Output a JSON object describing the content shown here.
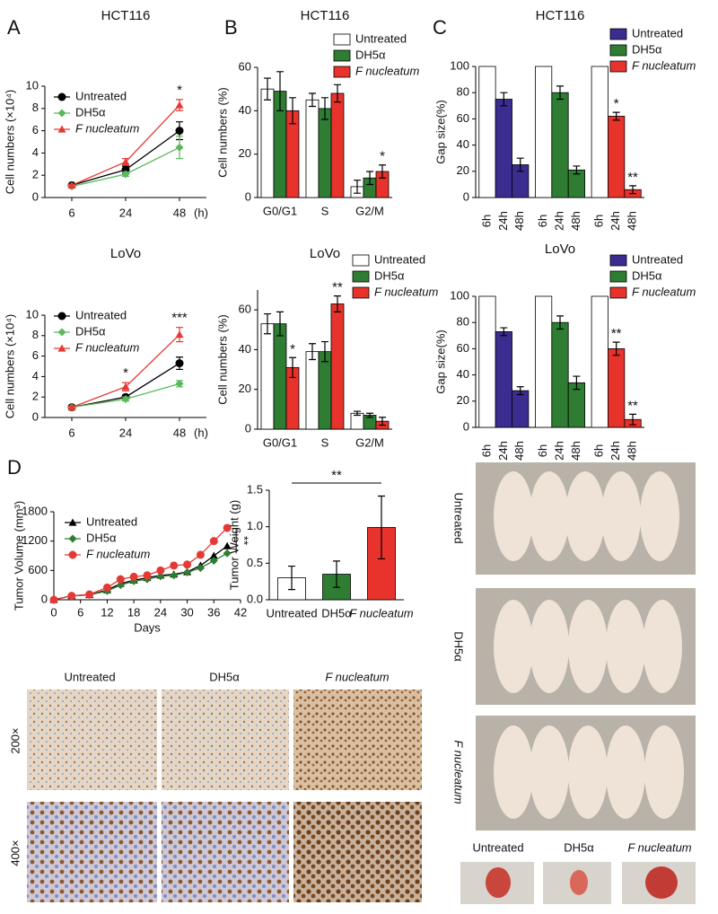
{
  "panel_labels": [
    "A",
    "B",
    "C",
    "D"
  ],
  "chart_data": [
    {
      "type": "line",
      "title": "HCT116",
      "ylabel": "Cell numbers (×10⁴)",
      "xlabel": "(h)",
      "categories": [
        "6",
        "24",
        "48"
      ],
      "ylim": [
        0,
        10
      ],
      "yticks": [
        0,
        2,
        4,
        6,
        8,
        10
      ],
      "series": [
        {
          "name": "Untreated",
          "color": "#000000",
          "marker": "circle",
          "values": [
            1.1,
            2.5,
            6.0
          ],
          "errors": [
            0.1,
            0.3,
            0.8
          ]
        },
        {
          "name": "DH5α",
          "color": "#5cb85c",
          "marker": "diamond",
          "values": [
            1.0,
            2.1,
            4.5
          ],
          "errors": [
            0.1,
            0.2,
            1.0
          ]
        },
        {
          "name": "F nucleatum",
          "color": "#e53935",
          "marker": "triangle",
          "style": "italic",
          "values": [
            1.1,
            3.2,
            8.3
          ],
          "errors": [
            0.1,
            0.3,
            0.5
          ]
        }
      ],
      "annotations": [
        {
          "text": "*",
          "series": 2,
          "index": 2
        }
      ]
    },
    {
      "type": "bar",
      "group_by": "category",
      "title": "HCT116",
      "ylabel": "Cell numbers (%)",
      "categories": [
        "G0/G1",
        "S",
        "G2/M"
      ],
      "ylim": [
        0,
        60
      ],
      "yticks": [
        0,
        20,
        40,
        60
      ],
      "series": [
        {
          "name": "Untreated",
          "color": "#ffffff",
          "values": [
            50,
            45,
            5
          ],
          "errors": [
            5,
            3,
            3
          ]
        },
        {
          "name": "DH5α",
          "color": "#2e7d32",
          "values": [
            49,
            41,
            9
          ],
          "errors": [
            9,
            5,
            3
          ]
        },
        {
          "name": "F nucleatum",
          "color": "#e8322c",
          "style": "italic",
          "values": [
            40,
            48,
            12
          ],
          "errors": [
            6,
            4,
            3
          ]
        }
      ],
      "annotations": [
        {
          "text": "*",
          "series": 2,
          "index": 2
        }
      ]
    },
    {
      "type": "bar",
      "group_by": "series",
      "title": "HCT116",
      "ylabel": "Gap size(%)",
      "categories": [
        "6h",
        "24h",
        "48h"
      ],
      "first_bar_color": "#ffffff",
      "ylim": [
        0,
        100
      ],
      "yticks": [
        0,
        20,
        40,
        60,
        80,
        100
      ],
      "series": [
        {
          "name": "Untreated",
          "color": "#3a2d8f",
          "values": [
            100,
            75,
            25
          ],
          "errors": [
            0,
            5,
            5
          ]
        },
        {
          "name": "DH5α",
          "color": "#2e7d32",
          "values": [
            100,
            80,
            21
          ],
          "errors": [
            0,
            5,
            3
          ]
        },
        {
          "name": "F nucleatum",
          "color": "#e8322c",
          "style": "italic",
          "values": [
            100,
            62,
            6
          ],
          "errors": [
            0,
            3,
            3
          ]
        }
      ],
      "annotations": [
        {
          "text": "*",
          "series": 2,
          "index": 1
        },
        {
          "text": "**",
          "series": 2,
          "index": 2
        }
      ]
    },
    {
      "type": "line",
      "title": "LoVo",
      "ylabel": "Cell numbers (×10⁴)",
      "xlabel": "(h)",
      "categories": [
        "6",
        "24",
        "48"
      ],
      "ylim": [
        0,
        10
      ],
      "yticks": [
        0,
        2,
        4,
        6,
        8,
        10
      ],
      "series": [
        {
          "name": "Untreated",
          "color": "#000000",
          "marker": "circle",
          "values": [
            1.0,
            2.0,
            5.3
          ],
          "errors": [
            0.1,
            0.2,
            0.6
          ]
        },
        {
          "name": "DH5α",
          "color": "#5cb85c",
          "marker": "diamond",
          "values": [
            1.0,
            1.8,
            3.3
          ],
          "errors": [
            0.1,
            0.2,
            0.3
          ]
        },
        {
          "name": "F nucleatum",
          "color": "#e53935",
          "marker": "triangle",
          "style": "italic",
          "values": [
            1.0,
            3.0,
            8.1
          ],
          "errors": [
            0.1,
            0.4,
            0.7
          ]
        }
      ],
      "annotations": [
        {
          "text": "*",
          "series": 2,
          "index": 1
        },
        {
          "text": "***",
          "series": 2,
          "index": 2
        }
      ]
    },
    {
      "type": "bar",
      "group_by": "category",
      "title": "LoVo",
      "ylabel": "Cell numbers (%)",
      "categories": [
        "G0/G1",
        "S",
        "G2/M"
      ],
      "ylim": [
        0,
        70
      ],
      "yticks": [
        0,
        20,
        40,
        60
      ],
      "series": [
        {
          "name": "Untreated",
          "color": "#ffffff",
          "values": [
            53,
            39,
            8
          ],
          "errors": [
            5,
            4,
            1
          ]
        },
        {
          "name": "DH5α",
          "color": "#2e7d32",
          "values": [
            53,
            39,
            7
          ],
          "errors": [
            6,
            5,
            1
          ]
        },
        {
          "name": "F nucleatum",
          "color": "#e8322c",
          "style": "italic",
          "values": [
            31,
            63,
            4
          ],
          "errors": [
            5,
            4,
            2
          ]
        }
      ],
      "annotations": [
        {
          "text": "*",
          "series": 2,
          "index": 0
        },
        {
          "text": "**",
          "series": 2,
          "index": 1
        }
      ]
    },
    {
      "type": "bar",
      "group_by": "series",
      "title": "LoVo",
      "ylabel": "Gap size(%)",
      "categories": [
        "6h",
        "24h",
        "48h"
      ],
      "first_bar_color": "#ffffff",
      "ylim": [
        0,
        100
      ],
      "yticks": [
        0,
        20,
        40,
        60,
        80,
        100
      ],
      "series": [
        {
          "name": "Untreated",
          "color": "#3a2d8f",
          "values": [
            100,
            73,
            28
          ],
          "errors": [
            0,
            3,
            3
          ]
        },
        {
          "name": "DH5α",
          "color": "#2e7d32",
          "values": [
            100,
            80,
            34
          ],
          "errors": [
            0,
            5,
            5
          ]
        },
        {
          "name": "F nucleatum",
          "color": "#e8322c",
          "style": "italic",
          "values": [
            100,
            60,
            6
          ],
          "errors": [
            0,
            5,
            4
          ]
        }
      ],
      "annotations": [
        {
          "text": "**",
          "series": 2,
          "index": 1
        },
        {
          "text": "**",
          "series": 2,
          "index": 2
        }
      ]
    },
    {
      "type": "line",
      "ylabel": "Tumor Volume (mm³)",
      "xlabel": "Days",
      "x": [
        0,
        4,
        8,
        12,
        15,
        18,
        21,
        24,
        27,
        30,
        33,
        36,
        39
      ],
      "xlim": [
        0,
        42
      ],
      "xticks": [
        0,
        6,
        12,
        18,
        24,
        30,
        36,
        42
      ],
      "ylim": [
        0,
        1800
      ],
      "yticks": [
        0,
        600,
        1200,
        1800
      ],
      "series": [
        {
          "name": "Untreated",
          "color": "#000000",
          "marker": "triangle",
          "values": [
            0,
            80,
            100,
            200,
            330,
            400,
            450,
            500,
            520,
            570,
            700,
            900,
            1100
          ]
        },
        {
          "name": "DH5α",
          "color": "#2e7d32",
          "marker": "diamond",
          "values": [
            0,
            80,
            100,
            180,
            300,
            380,
            420,
            480,
            500,
            560,
            650,
            800,
            950
          ]
        },
        {
          "name": "F nucleatum",
          "color": "#e53935",
          "marker": "circle",
          "style": "italic",
          "values": [
            0,
            80,
            110,
            250,
            420,
            470,
            500,
            600,
            700,
            720,
            920,
            1200,
            1470
          ]
        }
      ],
      "annotations": [
        {
          "text": "**",
          "from_series": 1,
          "to_series": 2,
          "index": 12
        }
      ]
    },
    {
      "type": "bar",
      "ylabel": "Tumor Weight (g)",
      "categories": [
        "Untreated",
        "DH5α",
        "F nucleatum"
      ],
      "italic_category": 2,
      "values": [
        0.3,
        0.35,
        0.99
      ],
      "errors": [
        0.16,
        0.18,
        0.43
      ],
      "colors": [
        "#ffffff",
        "#2e7d32",
        "#e8322c"
      ],
      "ylim": [
        0,
        1.5
      ],
      "yticks": [
        {
          "value": 0,
          "label": "0.0"
        },
        0.5,
        {
          "value": 1,
          "label": "1.0"
        },
        1.5
      ],
      "annotations": [
        {
          "text": "**",
          "from": 0,
          "to": 2
        }
      ]
    }
  ],
  "histology": {
    "columns": [
      "Untreated",
      "DH5α",
      "F nucleatum"
    ],
    "rows": [
      "200×",
      "400×"
    ]
  },
  "mice": {
    "rows": [
      "Untreated",
      "DH5α",
      "F nucleatum"
    ],
    "tumors": [
      "Untreated",
      "DH5α",
      "F nucleatum"
    ]
  }
}
